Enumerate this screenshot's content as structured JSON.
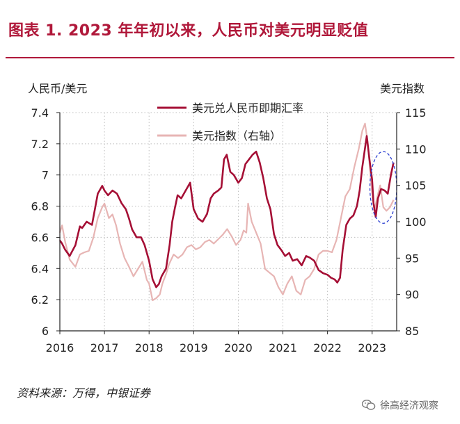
{
  "header": {
    "title": "图表 1.   2023 年年初以来，人民币对美元明显贬值"
  },
  "footer": {
    "source": "资料来源：万得，中银证券",
    "watermark": "徐高经济观察"
  },
  "colors": {
    "title": "#b0183a",
    "usdcny": "#a50f35",
    "dxy": "#e7b5b4",
    "highlight_circle": "#2b3fd1",
    "axis": "#222222",
    "grid": "#bdbdbd"
  },
  "icons": {
    "wechat": "wechat-logo-icon"
  },
  "chart_data": {
    "type": "line",
    "left_axis_label": "人民币/美元",
    "right_axis_label": "美元指数",
    "xlabel": "",
    "x_ticks": [
      "2016",
      "2017",
      "2018",
      "2019",
      "2020",
      "2021",
      "2022",
      "2023"
    ],
    "x_tick_values": [
      2016,
      2017,
      2018,
      2019,
      2020,
      2021,
      2022,
      2023
    ],
    "xlim": [
      2016,
      2023.55
    ],
    "ylim_left": [
      6,
      7.4
    ],
    "yticks_left": [
      "7.4",
      "7.2",
      "7",
      "6.8",
      "6.6",
      "6.4",
      "6.2",
      "6"
    ],
    "ylim_right": [
      85,
      115
    ],
    "yticks_right": [
      "115",
      "110",
      "105",
      "100",
      "95",
      "90",
      "85"
    ],
    "grid": true,
    "legend_position": "top-center",
    "series": [
      {
        "name": "美元兑人民币即期汇率",
        "axis": "left",
        "color": "#a50f35",
        "x": [
          2016.0,
          2016.05,
          2016.12,
          2016.22,
          2016.35,
          2016.45,
          2016.5,
          2016.6,
          2016.72,
          2016.85,
          2016.95,
          2017.0,
          2017.08,
          2017.18,
          2017.28,
          2017.38,
          2017.48,
          2017.55,
          2017.62,
          2017.72,
          2017.82,
          2017.9,
          2018.0,
          2018.08,
          2018.16,
          2018.22,
          2018.28,
          2018.38,
          2018.46,
          2018.52,
          2018.58,
          2018.64,
          2018.72,
          2018.82,
          2018.92,
          2019.0,
          2019.1,
          2019.2,
          2019.3,
          2019.38,
          2019.45,
          2019.55,
          2019.62,
          2019.68,
          2019.74,
          2019.82,
          2019.9,
          2020.0,
          2020.08,
          2020.16,
          2020.24,
          2020.32,
          2020.4,
          2020.48,
          2020.56,
          2020.64,
          2020.72,
          2020.8,
          2020.88,
          2020.96,
          2021.05,
          2021.14,
          2021.22,
          2021.32,
          2021.42,
          2021.52,
          2021.6,
          2021.7,
          2021.8,
          2021.9,
          2022.0,
          2022.08,
          2022.16,
          2022.22,
          2022.28,
          2022.34,
          2022.42,
          2022.5,
          2022.58,
          2022.66,
          2022.72,
          2022.78,
          2022.83,
          2022.88,
          2022.94,
          2023.0,
          2023.03,
          2023.08,
          2023.13,
          2023.2,
          2023.28,
          2023.35,
          2023.42,
          2023.48
        ],
        "y": [
          6.58,
          6.56,
          6.52,
          6.48,
          6.55,
          6.67,
          6.66,
          6.7,
          6.68,
          6.88,
          6.93,
          6.9,
          6.87,
          6.9,
          6.88,
          6.82,
          6.78,
          6.72,
          6.65,
          6.6,
          6.6,
          6.55,
          6.45,
          6.33,
          6.28,
          6.3,
          6.35,
          6.4,
          6.55,
          6.7,
          6.79,
          6.87,
          6.85,
          6.9,
          6.95,
          6.78,
          6.72,
          6.7,
          6.75,
          6.85,
          6.88,
          6.9,
          6.92,
          7.1,
          7.13,
          7.02,
          7.0,
          6.95,
          6.98,
          7.07,
          7.1,
          7.13,
          7.15,
          7.08,
          6.98,
          6.85,
          6.78,
          6.62,
          6.55,
          6.52,
          6.48,
          6.5,
          6.45,
          6.46,
          6.42,
          6.48,
          6.47,
          6.45,
          6.39,
          6.37,
          6.36,
          6.34,
          6.33,
          6.31,
          6.34,
          6.52,
          6.68,
          6.72,
          6.74,
          6.8,
          6.9,
          7.05,
          7.15,
          7.25,
          7.1,
          6.97,
          6.82,
          6.73,
          6.85,
          6.91,
          6.9,
          6.88,
          7.0,
          7.08
        ]
      },
      {
        "name": "美元指数（右轴）",
        "axis": "right",
        "color": "#e7b5b4",
        "x": [
          2016.0,
          2016.05,
          2016.12,
          2016.22,
          2016.35,
          2016.45,
          2016.55,
          2016.65,
          2016.75,
          2016.85,
          2016.95,
          2017.0,
          2017.1,
          2017.18,
          2017.26,
          2017.35,
          2017.45,
          2017.55,
          2017.65,
          2017.75,
          2017.85,
          2017.95,
          2018.0,
          2018.08,
          2018.16,
          2018.24,
          2018.3,
          2018.38,
          2018.45,
          2018.55,
          2018.65,
          2018.75,
          2018.85,
          2018.95,
          2019.05,
          2019.15,
          2019.25,
          2019.35,
          2019.45,
          2019.55,
          2019.65,
          2019.75,
          2019.85,
          2019.95,
          2020.05,
          2020.12,
          2020.18,
          2020.22,
          2020.3,
          2020.4,
          2020.5,
          2020.6,
          2020.7,
          2020.8,
          2020.9,
          2021.0,
          2021.1,
          2021.2,
          2021.3,
          2021.4,
          2021.5,
          2021.6,
          2021.7,
          2021.8,
          2021.9,
          2022.0,
          2022.1,
          2022.2,
          2022.3,
          2022.4,
          2022.5,
          2022.6,
          2022.7,
          2022.78,
          2022.84,
          2022.9,
          2022.96,
          2023.0,
          2023.05,
          2023.12,
          2023.18,
          2023.25,
          2023.32,
          2023.4,
          2023.48
        ],
        "y": [
          98.5,
          99.5,
          97.2,
          94.8,
          93.8,
          95.5,
          95.8,
          96.0,
          97.8,
          100.5,
          102.0,
          102.5,
          100.5,
          101.0,
          99.5,
          97.0,
          95.0,
          93.8,
          92.5,
          93.5,
          94.5,
          92.0,
          91.5,
          89.2,
          89.5,
          90.0,
          91.5,
          92.8,
          94.2,
          95.5,
          95.0,
          95.5,
          96.5,
          96.8,
          96.2,
          96.5,
          97.2,
          97.5,
          97.0,
          97.6,
          98.2,
          99.0,
          98.0,
          96.8,
          97.5,
          98.8,
          98.5,
          102.5,
          100.0,
          98.5,
          97.0,
          93.5,
          93.0,
          92.5,
          91.0,
          90.0,
          91.5,
          92.5,
          90.5,
          90.0,
          92.0,
          92.5,
          93.5,
          95.5,
          96.0,
          96.0,
          95.8,
          97.5,
          100.5,
          103.5,
          104.5,
          107.5,
          110.0,
          112.5,
          113.5,
          111.0,
          106.5,
          104.0,
          101.5,
          103.5,
          105.0,
          102.0,
          101.5,
          102.0,
          103.0
        ]
      }
    ],
    "annotation": {
      "shape": "dashed-ellipse",
      "x_range": [
        2022.95,
        2023.55
      ],
      "y_range_left": [
        6.69,
        7.15
      ]
    }
  }
}
